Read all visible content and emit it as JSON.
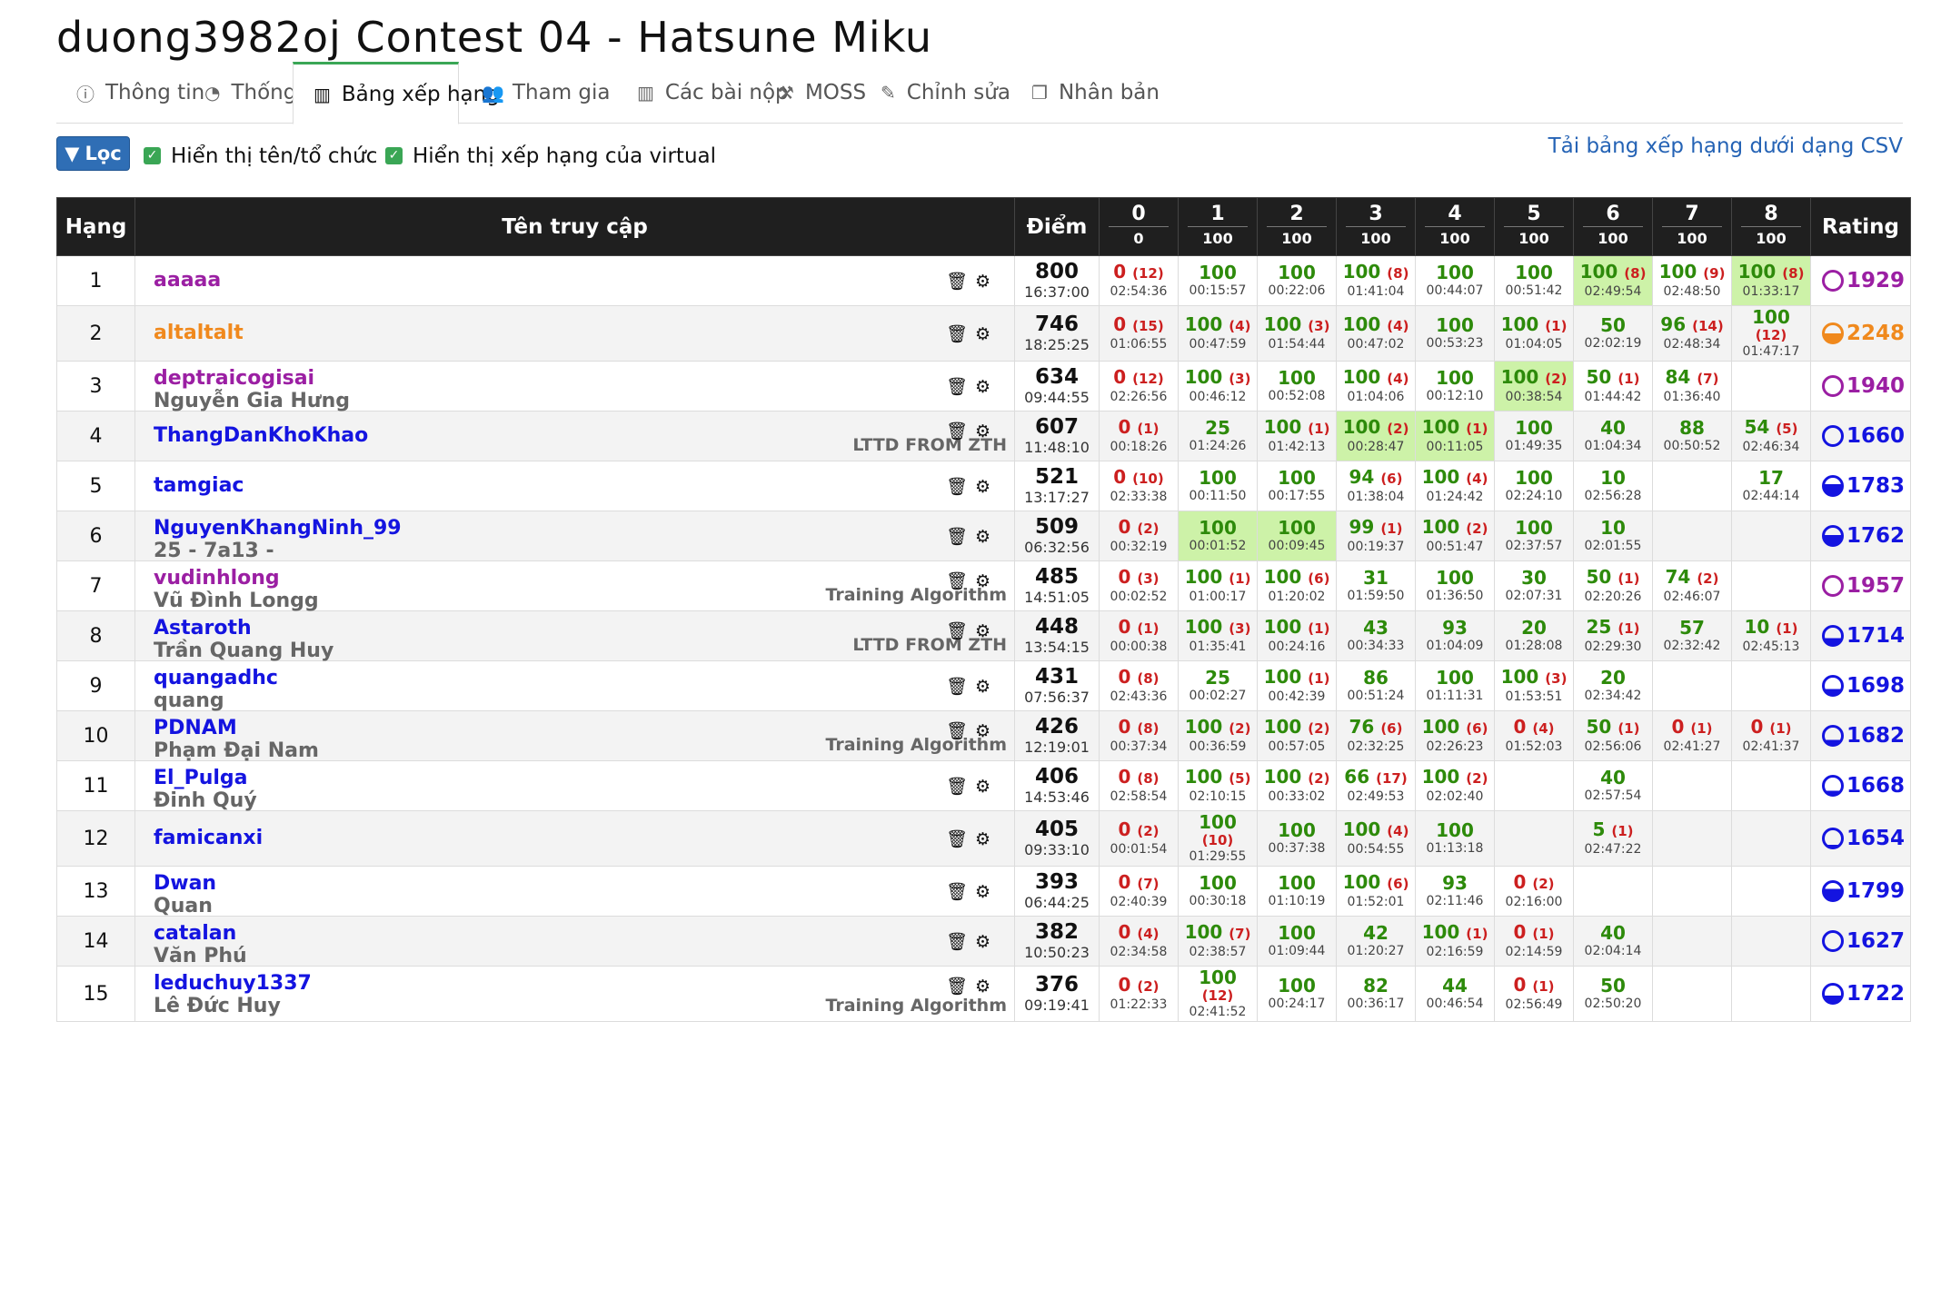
{
  "title": "duong3982oj Contest 04 - Hatsune Miku",
  "tabs": [
    {
      "label": "Thông tin",
      "icon": "info-icon"
    },
    {
      "label": "Thống kê",
      "icon": "pie-chart-icon"
    },
    {
      "label": "Bảng xếp hạng",
      "icon": "bar-chart-icon",
      "active": true
    },
    {
      "label": "Tham gia",
      "icon": "users-icon"
    },
    {
      "label": "Các bài nộp",
      "icon": "bar-chart-icon"
    },
    {
      "label": "MOSS",
      "icon": "gavel-icon"
    },
    {
      "label": "Chỉnh sửa",
      "icon": "edit-icon"
    },
    {
      "label": "Nhân bản",
      "icon": "copy-icon"
    }
  ],
  "filter": {
    "label": "Lọc",
    "show_org_label": "Hiển thị tên/tổ chức",
    "show_virtual_label": "Hiển thị xếp hạng của virtual"
  },
  "csv_link": "Tải bảng xếp hạng dưới dạng CSV",
  "headers": {
    "rank": "Hạng",
    "user": "Tên truy cập",
    "score": "Điểm",
    "rating": "Rating"
  },
  "problems": [
    {
      "label": "0",
      "points": "0"
    },
    {
      "label": "1",
      "points": "100"
    },
    {
      "label": "2",
      "points": "100"
    },
    {
      "label": "3",
      "points": "100"
    },
    {
      "label": "4",
      "points": "100"
    },
    {
      "label": "5",
      "points": "100"
    },
    {
      "label": "6",
      "points": "100"
    },
    {
      "label": "7",
      "points": "100"
    },
    {
      "label": "8",
      "points": "100"
    }
  ],
  "colors": {
    "purple": "#9b1fa3",
    "orange": "#f0891d",
    "blue": "#1414e0",
    "green": "#2d8a0a",
    "red": "#cc1f1f",
    "first_solve": "#cdf2a8",
    "header": "#1f1f1f"
  },
  "rows": [
    {
      "rank": "1",
      "user": "aaaaa",
      "name": "",
      "org": "",
      "color": "purple",
      "score": "800",
      "time": "16:37:00",
      "rating": "1929",
      "rating_color": "purple",
      "rating_fill": 0,
      "cells": [
        {
          "v": "0",
          "p": "(12)",
          "t": "02:54:36"
        },
        {
          "v": "100",
          "p": "",
          "t": "00:15:57"
        },
        {
          "v": "100",
          "p": "",
          "t": "00:22:06"
        },
        {
          "v": "100",
          "p": "(8)",
          "t": "01:41:04"
        },
        {
          "v": "100",
          "p": "",
          "t": "00:44:07"
        },
        {
          "v": "100",
          "p": "",
          "t": "00:51:42"
        },
        {
          "v": "100",
          "p": "(8)",
          "t": "02:49:54",
          "f": true
        },
        {
          "v": "100",
          "p": "(9)",
          "t": "02:48:50"
        },
        {
          "v": "100",
          "p": "(8)",
          "t": "01:33:17",
          "f": true
        }
      ]
    },
    {
      "rank": "2",
      "user": "altaltalt",
      "name": "",
      "org": "",
      "color": "orange",
      "score": "746",
      "time": "18:25:25",
      "rating": "2248",
      "rating_color": "orange",
      "rating_fill": 0.5,
      "cells": [
        {
          "v": "0",
          "p": "(15)",
          "t": "01:06:55"
        },
        {
          "v": "100",
          "p": "(4)",
          "t": "00:47:59"
        },
        {
          "v": "100",
          "p": "(3)",
          "t": "01:54:44"
        },
        {
          "v": "100",
          "p": "(4)",
          "t": "00:47:02"
        },
        {
          "v": "100",
          "p": "",
          "t": "00:53:23"
        },
        {
          "v": "100",
          "p": "(1)",
          "t": "01:04:05"
        },
        {
          "v": "50",
          "p": "",
          "t": "02:02:19"
        },
        {
          "v": "96",
          "p": "(14)",
          "t": "02:48:34"
        },
        {
          "v": "100",
          "p": "(12)",
          "t": "01:47:17",
          "stack": true
        }
      ]
    },
    {
      "rank": "3",
      "user": "deptraicogisai",
      "name": "Nguyễn Gia Hưng",
      "org": "",
      "color": "purple",
      "score": "634",
      "time": "09:44:55",
      "rating": "1940",
      "rating_color": "purple",
      "rating_fill": 0,
      "cells": [
        {
          "v": "0",
          "p": "(12)",
          "t": "02:26:56"
        },
        {
          "v": "100",
          "p": "(3)",
          "t": "00:46:12"
        },
        {
          "v": "100",
          "p": "",
          "t": "00:52:08"
        },
        {
          "v": "100",
          "p": "(4)",
          "t": "01:04:06"
        },
        {
          "v": "100",
          "p": "",
          "t": "00:12:10"
        },
        {
          "v": "100",
          "p": "(2)",
          "t": "00:38:54",
          "f": true
        },
        {
          "v": "50",
          "p": "(1)",
          "t": "01:44:42"
        },
        {
          "v": "84",
          "p": "(7)",
          "t": "01:36:40"
        },
        null
      ]
    },
    {
      "rank": "4",
      "user": "ThangDanKhoKhao",
      "name": "",
      "org": "LTTD FROM ZTH",
      "color": "blue",
      "score": "607",
      "time": "11:48:10",
      "rating": "1660",
      "rating_color": "blue",
      "rating_fill": 0,
      "cells": [
        {
          "v": "0",
          "p": "(1)",
          "t": "00:18:26"
        },
        {
          "v": "25",
          "p": "",
          "t": "01:24:26"
        },
        {
          "v": "100",
          "p": "(1)",
          "t": "01:42:13"
        },
        {
          "v": "100",
          "p": "(2)",
          "t": "00:28:47",
          "f": true
        },
        {
          "v": "100",
          "p": "(1)",
          "t": "00:11:05",
          "f": true
        },
        {
          "v": "100",
          "p": "",
          "t": "01:49:35"
        },
        {
          "v": "40",
          "p": "",
          "t": "01:04:34"
        },
        {
          "v": "88",
          "p": "",
          "t": "00:50:52"
        },
        {
          "v": "54",
          "p": "(5)",
          "t": "02:46:34"
        }
      ]
    },
    {
      "rank": "5",
      "user": "tamgiac",
      "name": "",
      "org": "",
      "color": "blue",
      "score": "521",
      "time": "13:17:27",
      "rating": "1783",
      "rating_color": "blue",
      "rating_fill": 0.6,
      "cells": [
        {
          "v": "0",
          "p": "(10)",
          "t": "02:33:38"
        },
        {
          "v": "100",
          "p": "",
          "t": "00:11:50"
        },
        {
          "v": "100",
          "p": "",
          "t": "00:17:55"
        },
        {
          "v": "94",
          "p": "(6)",
          "t": "01:38:04"
        },
        {
          "v": "100",
          "p": "(4)",
          "t": "01:24:42"
        },
        {
          "v": "100",
          "p": "",
          "t": "02:24:10"
        },
        {
          "v": "10",
          "p": "",
          "t": "02:56:28"
        },
        null,
        {
          "v": "17",
          "p": "",
          "t": "02:44:14"
        }
      ]
    },
    {
      "rank": "6",
      "user": "NguyenKhangNinh_99",
      "name": "25 - 7a13 -",
      "org": "",
      "color": "blue",
      "score": "509",
      "time": "06:32:56",
      "rating": "1762",
      "rating_color": "blue",
      "rating_fill": 0.55,
      "cells": [
        {
          "v": "0",
          "p": "(2)",
          "t": "00:32:19"
        },
        {
          "v": "100",
          "p": "",
          "t": "00:01:52",
          "f": true
        },
        {
          "v": "100",
          "p": "",
          "t": "00:09:45",
          "f": true
        },
        {
          "v": "99",
          "p": "(1)",
          "t": "00:19:37"
        },
        {
          "v": "100",
          "p": "(2)",
          "t": "00:51:47"
        },
        {
          "v": "100",
          "p": "",
          "t": "02:37:57"
        },
        {
          "v": "10",
          "p": "",
          "t": "02:01:55"
        },
        null,
        null
      ]
    },
    {
      "rank": "7",
      "user": "vudinhlong",
      "name": "Vũ Đình Longg",
      "org": "Training Algorithm",
      "color": "purple",
      "score": "485",
      "time": "14:51:05",
      "rating": "1957",
      "rating_color": "purple",
      "rating_fill": 0,
      "cells": [
        {
          "v": "0",
          "p": "(3)",
          "t": "00:02:52"
        },
        {
          "v": "100",
          "p": "(1)",
          "t": "01:00:17"
        },
        {
          "v": "100",
          "p": "(6)",
          "t": "01:20:02"
        },
        {
          "v": "31",
          "p": "",
          "t": "01:59:50"
        },
        {
          "v": "100",
          "p": "",
          "t": "01:36:50"
        },
        {
          "v": "30",
          "p": "",
          "t": "02:07:31"
        },
        {
          "v": "50",
          "p": "(1)",
          "t": "02:20:26"
        },
        {
          "v": "74",
          "p": "(2)",
          "t": "02:46:07"
        },
        null
      ]
    },
    {
      "rank": "8",
      "user": "Astaroth",
      "name": "Trần Quang Huy",
      "org": "LTTD FROM ZTH",
      "color": "blue",
      "score": "448",
      "time": "13:54:15",
      "rating": "1714",
      "rating_color": "blue",
      "rating_fill": 0.35,
      "cells": [
        {
          "v": "0",
          "p": "(1)",
          "t": "00:00:38"
        },
        {
          "v": "100",
          "p": "(3)",
          "t": "01:35:41"
        },
        {
          "v": "100",
          "p": "(1)",
          "t": "00:24:16"
        },
        {
          "v": "43",
          "p": "",
          "t": "00:34:33"
        },
        {
          "v": "93",
          "p": "",
          "t": "01:04:09"
        },
        {
          "v": "20",
          "p": "",
          "t": "01:28:08"
        },
        {
          "v": "25",
          "p": "(1)",
          "t": "02:29:30"
        },
        {
          "v": "57",
          "p": "",
          "t": "02:32:42"
        },
        {
          "v": "10",
          "p": "(1)",
          "t": "02:45:13"
        }
      ]
    },
    {
      "rank": "9",
      "user": "quangadhc",
      "name": "quang",
      "org": "",
      "color": "blue",
      "score": "431",
      "time": "07:56:37",
      "rating": "1698",
      "rating_color": "blue",
      "rating_fill": 0.3,
      "cells": [
        {
          "v": "0",
          "p": "(8)",
          "t": "02:43:36"
        },
        {
          "v": "25",
          "p": "",
          "t": "00:02:27"
        },
        {
          "v": "100",
          "p": "(1)",
          "t": "00:42:39"
        },
        {
          "v": "86",
          "p": "",
          "t": "00:51:24"
        },
        {
          "v": "100",
          "p": "",
          "t": "01:11:31"
        },
        {
          "v": "100",
          "p": "(3)",
          "t": "01:53:51"
        },
        {
          "v": "20",
          "p": "",
          "t": "02:34:42"
        },
        null,
        null
      ]
    },
    {
      "rank": "10",
      "user": "PDNAM",
      "name": "Phạm Đại Nam",
      "org": "Training Algorithm",
      "color": "blue",
      "score": "426",
      "time": "12:19:01",
      "rating": "1682",
      "rating_color": "blue",
      "rating_fill": 0.25,
      "cells": [
        {
          "v": "0",
          "p": "(8)",
          "t": "00:37:34"
        },
        {
          "v": "100",
          "p": "(2)",
          "t": "00:36:59"
        },
        {
          "v": "100",
          "p": "(2)",
          "t": "00:57:05"
        },
        {
          "v": "76",
          "p": "(6)",
          "t": "02:32:25"
        },
        {
          "v": "100",
          "p": "(6)",
          "t": "02:26:23"
        },
        {
          "v": "0",
          "p": "(4)",
          "t": "01:52:03"
        },
        {
          "v": "50",
          "p": "(1)",
          "t": "02:56:06"
        },
        {
          "v": "0",
          "p": "(1)",
          "t": "02:41:27"
        },
        {
          "v": "0",
          "p": "(1)",
          "t": "02:41:37"
        }
      ]
    },
    {
      "rank": "11",
      "user": "El_Pulga",
      "name": "Đinh Quý",
      "org": "",
      "color": "blue",
      "score": "406",
      "time": "14:53:46",
      "rating": "1668",
      "rating_color": "blue",
      "rating_fill": 0.2,
      "cells": [
        {
          "v": "0",
          "p": "(8)",
          "t": "02:58:54"
        },
        {
          "v": "100",
          "p": "(5)",
          "t": "02:10:15"
        },
        {
          "v": "100",
          "p": "(2)",
          "t": "00:33:02"
        },
        {
          "v": "66",
          "p": "(17)",
          "t": "02:49:53"
        },
        {
          "v": "100",
          "p": "(2)",
          "t": "02:02:40"
        },
        null,
        {
          "v": "40",
          "p": "",
          "t": "02:57:54"
        },
        null,
        null
      ]
    },
    {
      "rank": "12",
      "user": "famicanxi",
      "name": "",
      "org": "",
      "color": "blue",
      "score": "405",
      "time": "09:33:10",
      "rating": "1654",
      "rating_color": "blue",
      "rating_fill": 0.1,
      "cells": [
        {
          "v": "0",
          "p": "(2)",
          "t": "00:01:54"
        },
        {
          "v": "100",
          "p": "(10)",
          "t": "01:29:55",
          "stack": true
        },
        {
          "v": "100",
          "p": "",
          "t": "00:37:38"
        },
        {
          "v": "100",
          "p": "(4)",
          "t": "00:54:55"
        },
        {
          "v": "100",
          "p": "",
          "t": "01:13:18"
        },
        null,
        {
          "v": "5",
          "p": "(1)",
          "t": "02:47:22"
        },
        null,
        null
      ]
    },
    {
      "rank": "13",
      "user": "Dwan",
      "name": "Quan",
      "org": "",
      "color": "blue",
      "score": "393",
      "time": "06:44:25",
      "rating": "1799",
      "rating_color": "blue",
      "rating_fill": 0.65,
      "cells": [
        {
          "v": "0",
          "p": "(7)",
          "t": "02:40:39"
        },
        {
          "v": "100",
          "p": "",
          "t": "00:30:18"
        },
        {
          "v": "100",
          "p": "",
          "t": "01:10:19"
        },
        {
          "v": "100",
          "p": "(6)",
          "t": "01:52:01"
        },
        {
          "v": "93",
          "p": "",
          "t": "02:11:46"
        },
        {
          "v": "0",
          "p": "(2)",
          "t": "02:16:00"
        },
        null,
        null,
        null
      ]
    },
    {
      "rank": "14",
      "user": "catalan",
      "name": "Văn Phú",
      "org": "",
      "color": "blue",
      "score": "382",
      "time": "10:50:23",
      "rating": "1627",
      "rating_color": "blue",
      "rating_fill": 0,
      "cells": [
        {
          "v": "0",
          "p": "(4)",
          "t": "02:34:58"
        },
        {
          "v": "100",
          "p": "(7)",
          "t": "02:38:57"
        },
        {
          "v": "100",
          "p": "",
          "t": "01:09:44"
        },
        {
          "v": "42",
          "p": "",
          "t": "01:20:27"
        },
        {
          "v": "100",
          "p": "(1)",
          "t": "02:16:59"
        },
        {
          "v": "0",
          "p": "(1)",
          "t": "02:14:59"
        },
        {
          "v": "40",
          "p": "",
          "t": "02:04:14"
        },
        null,
        null
      ]
    },
    {
      "rank": "15",
      "user": "leduchuy1337",
      "name": "Lê Đức Huy",
      "org": "Training Algorithm",
      "color": "blue",
      "score": "376",
      "time": "09:19:41",
      "rating": "1722",
      "rating_color": "blue",
      "rating_fill": 0.4,
      "cells": [
        {
          "v": "0",
          "p": "(2)",
          "t": "01:22:33"
        },
        {
          "v": "100",
          "p": "(12)",
          "t": "02:41:52",
          "stack": true
        },
        {
          "v": "100",
          "p": "",
          "t": "00:24:17"
        },
        {
          "v": "82",
          "p": "",
          "t": "00:36:17"
        },
        {
          "v": "44",
          "p": "",
          "t": "00:46:54"
        },
        {
          "v": "0",
          "p": "(1)",
          "t": "02:56:49"
        },
        {
          "v": "50",
          "p": "",
          "t": "02:50:20"
        },
        null,
        null
      ]
    }
  ]
}
